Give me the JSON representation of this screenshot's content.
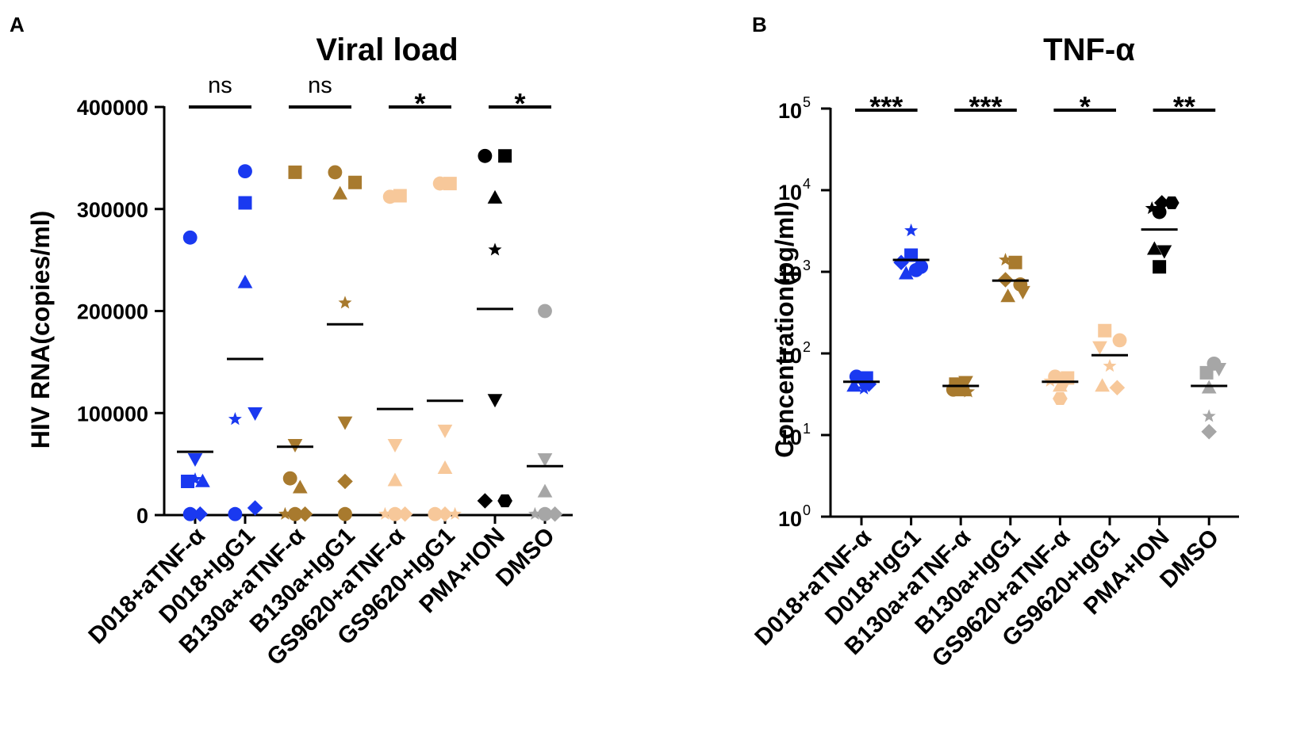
{
  "chart_data": [
    {
      "type": "scatter",
      "panel_label": "A",
      "title": "Viral load",
      "xlabel": "",
      "ylabel": "HIV RNA(copies/ml)",
      "yscale": "linear",
      "ylim": [
        0,
        400000
      ],
      "yticks": [
        0,
        100000,
        200000,
        300000,
        400000
      ],
      "ytick_labels": [
        "0",
        "100000",
        "200000",
        "300000",
        "400000"
      ],
      "categories": [
        "D018+aTNF-α",
        "D018+IgG1",
        "B130a+aTNF-α",
        "B130a+IgG1",
        "GS9620+aTNF-α",
        "GS9620+IgG1",
        "PMA+ION",
        "DMSO"
      ],
      "colors": [
        "#1a39f0",
        "#1a39f0",
        "#a87a2e",
        "#a87a2e",
        "#f7c89a",
        "#f7c89a",
        "#000000",
        "#a6a6a6"
      ],
      "groups": [
        {
          "category": "D018+aTNF-α",
          "mean": 62000,
          "points": [
            {
              "marker": "circle",
              "value": 272000,
              "jitter": -0.1
            },
            {
              "marker": "inverted-triangle",
              "value": 55000,
              "jitter": 0.0
            },
            {
              "marker": "square",
              "value": 33000,
              "jitter": -0.15
            },
            {
              "marker": "triangle",
              "value": 33000,
              "jitter": 0.15
            },
            {
              "marker": "star",
              "value": 35000,
              "jitter": 0.0
            },
            {
              "marker": "circle",
              "value": 1000,
              "jitter": -0.1
            },
            {
              "marker": "diamond",
              "value": 1000,
              "jitter": 0.1
            }
          ]
        },
        {
          "category": "D018+IgG1",
          "mean": 153000,
          "points": [
            {
              "marker": "circle",
              "value": 337000,
              "jitter": 0.0
            },
            {
              "marker": "square",
              "value": 306000,
              "jitter": 0.0
            },
            {
              "marker": "triangle",
              "value": 228000,
              "jitter": 0.0
            },
            {
              "marker": "inverted-triangle",
              "value": 100000,
              "jitter": 0.2
            },
            {
              "marker": "star",
              "value": 94000,
              "jitter": -0.2
            },
            {
              "marker": "circle",
              "value": 1000,
              "jitter": -0.2
            },
            {
              "marker": "diamond",
              "value": 7000,
              "jitter": 0.2
            }
          ]
        },
        {
          "category": "B130a+aTNF-α",
          "mean": 67000,
          "points": [
            {
              "marker": "square",
              "value": 336000,
              "jitter": 0.0
            },
            {
              "marker": "inverted-triangle",
              "value": 69000,
              "jitter": 0.0
            },
            {
              "marker": "circle",
              "value": 36000,
              "jitter": -0.1
            },
            {
              "marker": "triangle",
              "value": 27000,
              "jitter": 0.1
            },
            {
              "marker": "star",
              "value": 1000,
              "jitter": -0.2
            },
            {
              "marker": "circle",
              "value": 1000,
              "jitter": 0.0
            },
            {
              "marker": "diamond",
              "value": 1000,
              "jitter": 0.2
            }
          ]
        },
        {
          "category": "B130a+IgG1",
          "mean": 187000,
          "points": [
            {
              "marker": "circle",
              "value": 336000,
              "jitter": -0.2
            },
            {
              "marker": "square",
              "value": 326000,
              "jitter": 0.2
            },
            {
              "marker": "triangle",
              "value": 315000,
              "jitter": -0.1
            },
            {
              "marker": "star",
              "value": 208000,
              "jitter": 0.0
            },
            {
              "marker": "inverted-triangle",
              "value": 91000,
              "jitter": 0.0
            },
            {
              "marker": "diamond",
              "value": 33000,
              "jitter": 0.0
            },
            {
              "marker": "circle",
              "value": 1000,
              "jitter": 0.0
            }
          ]
        },
        {
          "category": "GS9620+aTNF-α",
          "mean": 104000,
          "points": [
            {
              "marker": "circle",
              "value": 312000,
              "jitter": -0.1
            },
            {
              "marker": "square",
              "value": 313000,
              "jitter": 0.1
            },
            {
              "marker": "inverted-triangle",
              "value": 69000,
              "jitter": 0.0
            },
            {
              "marker": "triangle",
              "value": 34000,
              "jitter": 0.0
            },
            {
              "marker": "star",
              "value": 1000,
              "jitter": -0.2
            },
            {
              "marker": "circle",
              "value": 1000,
              "jitter": 0.0
            },
            {
              "marker": "diamond",
              "value": 1000,
              "jitter": 0.2
            }
          ]
        },
        {
          "category": "GS9620+IgG1",
          "mean": 112000,
          "points": [
            {
              "marker": "circle",
              "value": 325000,
              "jitter": -0.1
            },
            {
              "marker": "square",
              "value": 325000,
              "jitter": 0.1
            },
            {
              "marker": "inverted-triangle",
              "value": 83000,
              "jitter": 0.0
            },
            {
              "marker": "triangle",
              "value": 46000,
              "jitter": 0.0
            },
            {
              "marker": "circle",
              "value": 1000,
              "jitter": -0.2
            },
            {
              "marker": "diamond",
              "value": 1000,
              "jitter": 0.0
            },
            {
              "marker": "star",
              "value": 1000,
              "jitter": 0.2
            }
          ]
        },
        {
          "category": "PMA+ION",
          "mean": 202000,
          "points": [
            {
              "marker": "circle",
              "value": 352000,
              "jitter": -0.2
            },
            {
              "marker": "square",
              "value": 352000,
              "jitter": 0.2
            },
            {
              "marker": "triangle",
              "value": 311000,
              "jitter": 0.0
            },
            {
              "marker": "star",
              "value": 260000,
              "jitter": 0.0
            },
            {
              "marker": "inverted-triangle",
              "value": 113000,
              "jitter": 0.0
            },
            {
              "marker": "diamond",
              "value": 14000,
              "jitter": -0.2
            },
            {
              "marker": "hexagon",
              "value": 14000,
              "jitter": 0.2
            }
          ]
        },
        {
          "category": "DMSO",
          "mean": 48000,
          "points": [
            {
              "marker": "circle",
              "value": 200000,
              "jitter": 0.0
            },
            {
              "marker": "inverted-triangle",
              "value": 55000,
              "jitter": 0.0
            },
            {
              "marker": "triangle",
              "value": 23000,
              "jitter": 0.0
            },
            {
              "marker": "star",
              "value": 1000,
              "jitter": -0.2
            },
            {
              "marker": "circle",
              "value": 1000,
              "jitter": 0.0
            },
            {
              "marker": "diamond",
              "value": 1000,
              "jitter": 0.2
            }
          ]
        }
      ],
      "significance": [
        {
          "between": [
            0,
            1
          ],
          "label": "ns"
        },
        {
          "between": [
            2,
            3
          ],
          "label": "ns"
        },
        {
          "between": [
            4,
            5
          ],
          "label": "*"
        },
        {
          "between": [
            6,
            7
          ],
          "label": "*"
        }
      ]
    },
    {
      "type": "scatter",
      "panel_label": "B",
      "title": "TNF-α",
      "xlabel": "",
      "ylabel": "Concentration(pg/ml)",
      "yscale": "log",
      "ylim": [
        1,
        100000
      ],
      "yticks": [
        1,
        10,
        100,
        1000,
        10000,
        100000
      ],
      "ytick_labels": [
        {
          "base": "10",
          "exp": "0"
        },
        {
          "base": "10",
          "exp": "1"
        },
        {
          "base": "10",
          "exp": "2"
        },
        {
          "base": "10",
          "exp": "3"
        },
        {
          "base": "10",
          "exp": "4"
        },
        {
          "base": "10",
          "exp": "5"
        }
      ],
      "categories": [
        "D018+aTNF-α",
        "D018+IgG1",
        "B130a+aTNF-α",
        "B130a+IgG1",
        "GS9620+aTNF-α",
        "GS9620+IgG1",
        "PMA+ION",
        "DMSO"
      ],
      "colors": [
        "#1a39f0",
        "#1a39f0",
        "#a87a2e",
        "#a87a2e",
        "#f7c89a",
        "#f7c89a",
        "#000000",
        "#a6a6a6"
      ],
      "groups": [
        {
          "category": "D018+aTNF-α",
          "mean": 45,
          "points": [
            {
              "marker": "circle",
              "value": 52,
              "jitter": -0.1
            },
            {
              "marker": "square",
              "value": 50,
              "jitter": 0.1
            },
            {
              "marker": "inverted-triangle",
              "value": 46,
              "jitter": 0.0
            },
            {
              "marker": "triangle",
              "value": 40,
              "jitter": -0.15
            },
            {
              "marker": "diamond",
              "value": 42,
              "jitter": 0.15
            },
            {
              "marker": "star",
              "value": 37,
              "jitter": 0.05
            }
          ]
        },
        {
          "category": "D018+IgG1",
          "mean": 1400,
          "points": [
            {
              "marker": "star",
              "value": 3200,
              "jitter": 0.0
            },
            {
              "marker": "square",
              "value": 1600,
              "jitter": 0.0
            },
            {
              "marker": "diamond",
              "value": 1300,
              "jitter": -0.2
            },
            {
              "marker": "circle",
              "value": 1150,
              "jitter": 0.2
            },
            {
              "marker": "triangle",
              "value": 950,
              "jitter": -0.1
            },
            {
              "marker": "circle",
              "value": 1050,
              "jitter": 0.1
            }
          ]
        },
        {
          "category": "B130a+aTNF-α",
          "mean": 40,
          "points": [
            {
              "marker": "inverted-triangle",
              "value": 45,
              "jitter": 0.1
            },
            {
              "marker": "square",
              "value": 42,
              "jitter": -0.1
            },
            {
              "marker": "circle",
              "value": 36,
              "jitter": -0.15
            },
            {
              "marker": "triangle",
              "value": 35,
              "jitter": 0.05
            },
            {
              "marker": "star",
              "value": 34,
              "jitter": 0.15
            },
            {
              "marker": "diamond",
              "value": 38,
              "jitter": 0.0
            }
          ]
        },
        {
          "category": "B130a+IgG1",
          "mean": 780,
          "points": [
            {
              "marker": "star",
              "value": 1400,
              "jitter": -0.1
            },
            {
              "marker": "square",
              "value": 1300,
              "jitter": 0.1
            },
            {
              "marker": "diamond",
              "value": 800,
              "jitter": -0.1
            },
            {
              "marker": "circle",
              "value": 700,
              "jitter": 0.2
            },
            {
              "marker": "inverted-triangle",
              "value": 570,
              "jitter": 0.25
            },
            {
              "marker": "triangle",
              "value": 500,
              "jitter": -0.05
            }
          ]
        },
        {
          "category": "GS9620+aTNF-α",
          "mean": 45,
          "points": [
            {
              "marker": "circle",
              "value": 52,
              "jitter": -0.1
            },
            {
              "marker": "square",
              "value": 50,
              "jitter": 0.15
            },
            {
              "marker": "star",
              "value": 46,
              "jitter": -0.2
            },
            {
              "marker": "inverted-triangle",
              "value": 43,
              "jitter": 0.1
            },
            {
              "marker": "triangle",
              "value": 40,
              "jitter": 0.0
            },
            {
              "marker": "hexagon",
              "value": 28,
              "jitter": 0.0
            }
          ]
        },
        {
          "category": "GS9620+IgG1",
          "mean": 95,
          "points": [
            {
              "marker": "square",
              "value": 190,
              "jitter": -0.1
            },
            {
              "marker": "circle",
              "value": 145,
              "jitter": 0.2
            },
            {
              "marker": "inverted-triangle",
              "value": 120,
              "jitter": -0.2
            },
            {
              "marker": "star",
              "value": 70,
              "jitter": 0.0
            },
            {
              "marker": "triangle",
              "value": 40,
              "jitter": -0.15
            },
            {
              "marker": "diamond",
              "value": 38,
              "jitter": 0.15
            }
          ]
        },
        {
          "category": "PMA+ION",
          "mean": 3300,
          "points": [
            {
              "marker": "diamond",
              "value": 7000,
              "jitter": 0.05
            },
            {
              "marker": "hexagon",
              "value": 7000,
              "jitter": 0.25
            },
            {
              "marker": "star",
              "value": 6000,
              "jitter": -0.15
            },
            {
              "marker": "circle",
              "value": 5400,
              "jitter": 0.0
            },
            {
              "marker": "triangle",
              "value": 1900,
              "jitter": -0.1
            },
            {
              "marker": "inverted-triangle",
              "value": 1800,
              "jitter": 0.1
            },
            {
              "marker": "square",
              "value": 1150,
              "jitter": 0.0
            }
          ]
        },
        {
          "category": "DMSO",
          "mean": 40,
          "points": [
            {
              "marker": "circle",
              "value": 75,
              "jitter": 0.1
            },
            {
              "marker": "inverted-triangle",
              "value": 65,
              "jitter": 0.2
            },
            {
              "marker": "square",
              "value": 58,
              "jitter": -0.05
            },
            {
              "marker": "triangle",
              "value": 38,
              "jitter": 0.0
            },
            {
              "marker": "star",
              "value": 17,
              "jitter": 0.0
            },
            {
              "marker": "diamond",
              "value": 11,
              "jitter": 0.0
            }
          ]
        }
      ],
      "significance": [
        {
          "between": [
            0,
            1
          ],
          "label": "***"
        },
        {
          "between": [
            2,
            3
          ],
          "label": "***"
        },
        {
          "between": [
            4,
            5
          ],
          "label": "*"
        },
        {
          "between": [
            6,
            7
          ],
          "label": "**"
        }
      ]
    }
  ]
}
